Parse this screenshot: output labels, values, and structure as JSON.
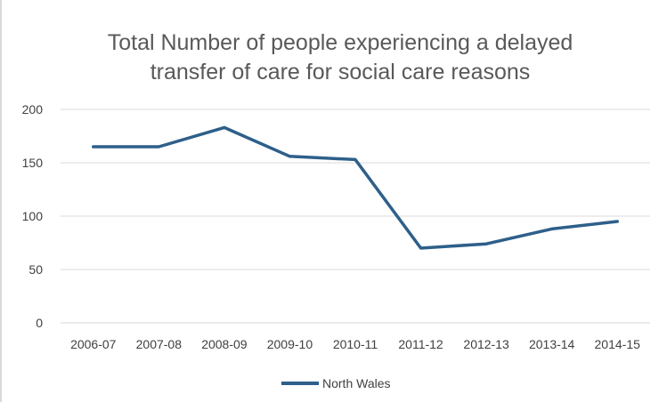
{
  "chart_data": {
    "type": "line",
    "title_lines": [
      "Total Number of people experiencing a delayed",
      "transfer of care for social care reasons"
    ],
    "categories": [
      "2006-07",
      "2007-08",
      "2008-09",
      "2009-10",
      "2010-11",
      "2011-12",
      "2012-13",
      "2013-14",
      "2014-15"
    ],
    "series": [
      {
        "name": "North Wales",
        "values": [
          165,
          165,
          183,
          156,
          153,
          70,
          74,
          88,
          95
        ]
      }
    ],
    "y_ticks": [
      "0",
      "50",
      "100",
      "150",
      "200"
    ],
    "ylim": [
      0,
      200
    ],
    "xlabel": "",
    "ylabel": "",
    "grid": true,
    "legend_position": "bottom",
    "colors": {
      "series": "#2e5f8a",
      "grid": "#d9d9d9",
      "title": "#595959",
      "axis_text": "#404040"
    }
  }
}
